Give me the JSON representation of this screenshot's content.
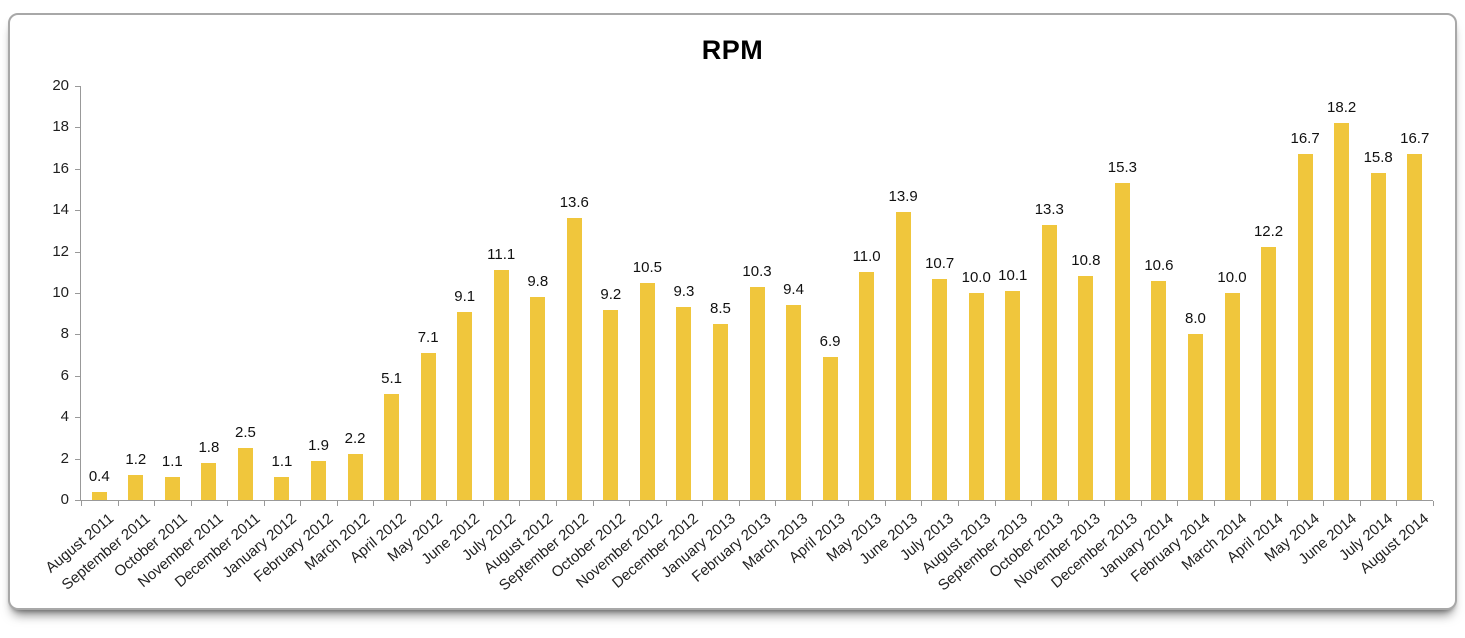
{
  "chart_data": {
    "type": "bar",
    "title": "RPM",
    "xlabel": "",
    "ylabel": "",
    "categories": [
      "August 2011",
      "September 2011",
      "October 2011",
      "November 2011",
      "December 2011",
      "January 2012",
      "February 2012",
      "March 2012",
      "April 2012",
      "May 2012",
      "June 2012",
      "July 2012",
      "August 2012",
      "September 2012",
      "October 2012",
      "November 2012",
      "December 2012",
      "January 2013",
      "February 2013",
      "March 2013",
      "April 2013",
      "May 2013",
      "June 2013",
      "July 2013",
      "August 2013",
      "September 2013",
      "October 2013",
      "November 2013",
      "December 2013",
      "January 2014",
      "February 2014",
      "March 2014",
      "April 2014",
      "May 2014",
      "June 2014",
      "July 2014",
      "August 2014"
    ],
    "values": [
      0.4,
      1.2,
      1.1,
      1.8,
      2.5,
      1.1,
      1.9,
      2.2,
      5.1,
      7.1,
      9.1,
      11.1,
      9.8,
      13.6,
      9.2,
      10.5,
      9.3,
      8.5,
      10.3,
      9.4,
      6.9,
      11.0,
      13.9,
      10.7,
      10.0,
      10.1,
      13.3,
      10.8,
      15.3,
      10.6,
      8.0,
      10.0,
      12.2,
      16.7,
      18.2,
      15.8,
      16.7
    ],
    "value_label_decimals": 1,
    "ylim": [
      0,
      20
    ],
    "yticks": [
      0,
      2,
      4,
      6,
      8,
      10,
      12,
      14,
      16,
      18,
      20
    ],
    "grid": false,
    "legend_position": "none",
    "bar_color": "#F0C63C",
    "axis_color": "#999999",
    "tick_label_color": "#1f1f1f",
    "value_label_color": "#111111",
    "title_color": "#000000"
  }
}
